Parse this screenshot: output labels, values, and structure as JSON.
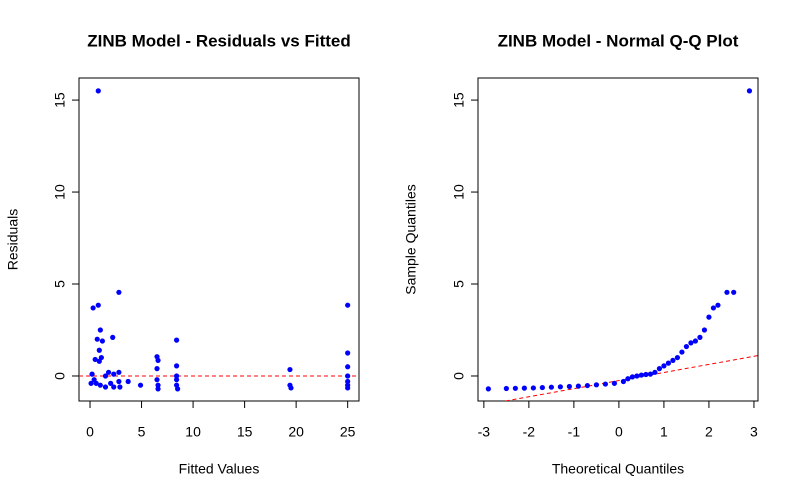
{
  "chart_data": [
    {
      "type": "scatter",
      "title": "ZINB Model - Residuals vs Fitted",
      "xlabel": "Fitted Values",
      "ylabel": "Residuals",
      "color": "#0000ff",
      "x": [
        0.8,
        0.3,
        0.8,
        2.8,
        25,
        0.7,
        1.0,
        1.2,
        0.9,
        2.2,
        8.4,
        0.5,
        0.9,
        1.1,
        6.5,
        6.6,
        25,
        8.4,
        19.4,
        0.2,
        0.4,
        0.6,
        1.0,
        1.5,
        1.8,
        2.3,
        2.3,
        2.8,
        2.8,
        2.9,
        3.7,
        4.9,
        6.5,
        6.6,
        6.6,
        6.5,
        8.4,
        8.4,
        8.5,
        8.4,
        19.4,
        19.5,
        25,
        25,
        25,
        25,
        25,
        0.1,
        1.5,
        2.0
      ],
      "y": [
        15.5,
        3.7,
        3.85,
        4.55,
        3.85,
        2.0,
        2.5,
        1.9,
        1.4,
        2.1,
        1.95,
        0.9,
        0.8,
        1.0,
        1.05,
        0.85,
        1.25,
        0.55,
        0.35,
        0.1,
        -0.2,
        -0.4,
        -0.5,
        0.0,
        0.2,
        0.1,
        -0.6,
        -0.3,
        0.2,
        -0.6,
        -0.3,
        -0.5,
        -0.2,
        -0.5,
        -0.7,
        0.4,
        -0.2,
        -0.5,
        -0.7,
        0.0,
        -0.5,
        -0.65,
        0.5,
        0.0,
        -0.3,
        -0.5,
        -0.65,
        -0.4,
        -0.6,
        -0.4
      ],
      "ref_line": {
        "intercept": 0,
        "slope": 0,
        "color": "#ff0000"
      },
      "xlim": [
        -1.07,
        26.1
      ],
      "ylim": [
        -1.36,
        16.2
      ],
      "xticks": [
        0,
        5,
        10,
        15,
        20,
        25
      ],
      "yticks": [
        0,
        5,
        10,
        15
      ]
    },
    {
      "type": "scatter",
      "title": "ZINB Model - Normal Q-Q Plot",
      "xlabel": "Theoretical Quantiles",
      "ylabel": "Sample Quantiles",
      "color": "#0000ff",
      "x": [
        -2.9,
        -2.5,
        -2.3,
        -2.1,
        -1.9,
        -1.7,
        -1.5,
        -1.3,
        -1.1,
        -0.9,
        -0.7,
        -0.5,
        -0.3,
        -0.1,
        0.1,
        0.2,
        0.3,
        0.4,
        0.5,
        0.6,
        0.7,
        0.8,
        0.9,
        1.0,
        1.1,
        1.2,
        1.3,
        1.4,
        1.5,
        1.6,
        1.7,
        1.8,
        1.9,
        2.0,
        2.1,
        2.2,
        2.4,
        2.55,
        2.9
      ],
      "y": [
        -0.7,
        -0.68,
        -0.67,
        -0.66,
        -0.65,
        -0.63,
        -0.61,
        -0.59,
        -0.57,
        -0.55,
        -0.52,
        -0.48,
        -0.44,
        -0.4,
        -0.3,
        -0.15,
        -0.05,
        0.0,
        0.05,
        0.08,
        0.1,
        0.2,
        0.4,
        0.55,
        0.7,
        0.85,
        1.0,
        1.3,
        1.6,
        1.8,
        1.9,
        2.1,
        2.5,
        3.2,
        3.7,
        3.85,
        4.55,
        4.55,
        15.5
      ],
      "ref_line": {
        "intercept": -0.25,
        "slope": 0.44,
        "color": "#ff0000"
      },
      "xlim": [
        -3.13,
        3.09
      ],
      "ylim": [
        -1.36,
        16.2
      ],
      "xticks": [
        -3,
        -2,
        -1,
        0,
        1,
        2,
        3
      ],
      "yticks": [
        0,
        5,
        10,
        15
      ]
    }
  ]
}
